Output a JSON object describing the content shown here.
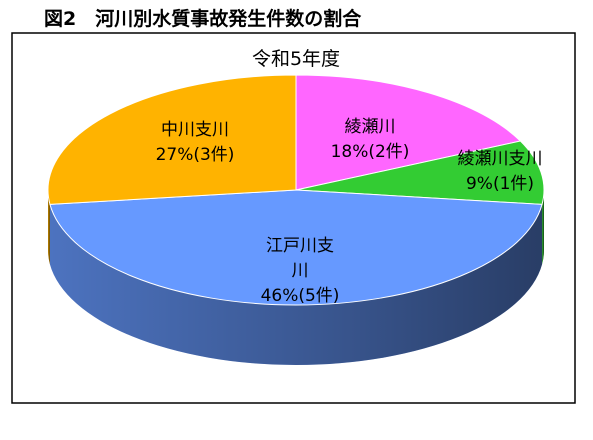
{
  "chart_data": {
    "type": "pie",
    "title": "図2　河川別水質事故発生件数の割合",
    "subtitle": "令和5年度",
    "categories": [
      "綾瀬川",
      "綾瀬川支川",
      "江戸川支川",
      "中川支川"
    ],
    "values": [
      18,
      9,
      46,
      27
    ],
    "value_labels": [
      "18%(2件)",
      "9%(1件)",
      "46%(5件)",
      "27%(3件)"
    ],
    "colors": [
      "#ff66ff",
      "#33cc33",
      "#6699ff",
      "#ffb300"
    ]
  }
}
